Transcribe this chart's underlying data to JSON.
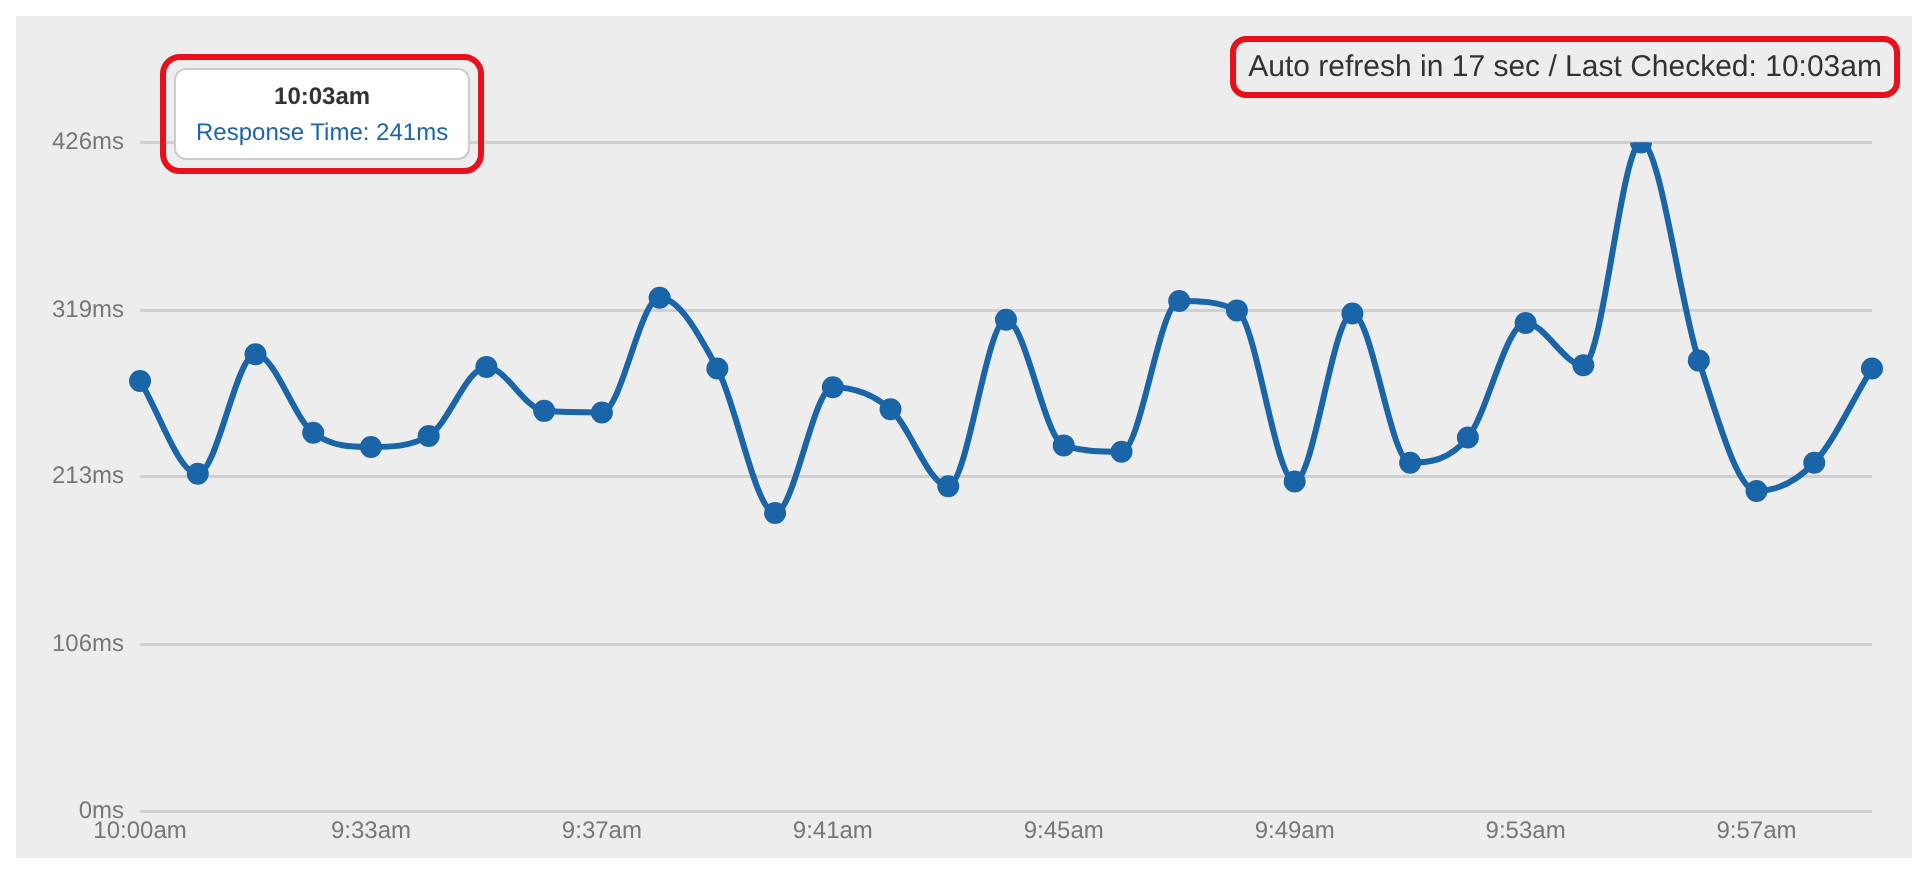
{
  "chart_data": {
    "type": "line",
    "subtitle": "Auto refresh in 17 sec / Last Checked: 10:03am",
    "categories": [
      "10:00am",
      null,
      null,
      null,
      "9:33am",
      null,
      null,
      null,
      "9:37am",
      null,
      null,
      null,
      "9:41am",
      null,
      null,
      null,
      "9:45am",
      null,
      null,
      null,
      "9:49am",
      null,
      null,
      null,
      "9:53am",
      null,
      null,
      null,
      "9:57am",
      null,
      null
    ],
    "series": [
      {
        "color": "#1a64a8",
        "values": [
          274,
          215,
          291,
          241,
          232,
          239,
          283,
          255,
          254,
          327,
          282,
          190,
          270,
          256,
          207,
          313,
          233,
          229,
          325,
          319,
          210,
          317,
          222,
          238,
          311,
          284,
          426,
          287,
          204,
          222,
          282
        ]
      }
    ],
    "ylim": [
      0,
      426
    ],
    "yticks": [
      {
        "value": 0,
        "label": "0ms"
      },
      {
        "value": 106,
        "label": "106ms"
      },
      {
        "value": 213,
        "label": "213ms"
      },
      {
        "value": 319,
        "label": "319ms"
      },
      {
        "value": 426,
        "label": "426ms"
      }
    ],
    "grid": "y",
    "marker": "circle",
    "line_style": "solid",
    "annotations": [
      "10:03am",
      "Response Time: 241ms"
    ]
  }
}
